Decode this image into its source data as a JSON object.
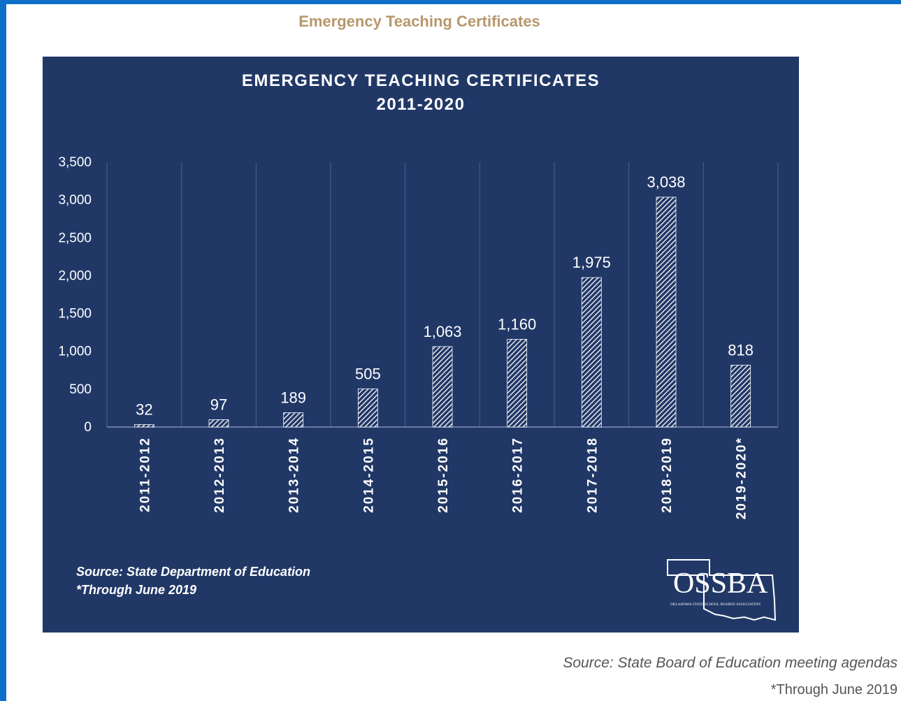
{
  "page": {
    "heading": "Emergency Teaching Certificates",
    "source": "Source: State Board of Education meeting agendas",
    "footnote": "*Through June 2019",
    "frame_color": "#0d6fc8",
    "heading_color": "#b8976b"
  },
  "chart_data": {
    "type": "bar",
    "title": "EMERGENCY TEACHING CERTIFICATES",
    "subtitle": "2011-2020",
    "categories": [
      "2011-2012",
      "2012-2013",
      "2013-2014",
      "2014-2015",
      "2015-2016",
      "2016-2017",
      "2017-2018",
      "2018-2019",
      "2019-2020*"
    ],
    "values": [
      32,
      97,
      189,
      505,
      1063,
      1160,
      1975,
      3038,
      818
    ],
    "value_labels": [
      "32",
      "97",
      "189",
      "505",
      "1,063",
      "1,160",
      "1,975",
      "3,038",
      "818"
    ],
    "yticks": [
      0,
      500,
      1000,
      1500,
      2000,
      2500,
      3000,
      3500
    ],
    "ytick_labels": [
      "0",
      "500",
      "1,000",
      "1,500",
      "2,000",
      "2,500",
      "3,000",
      "3,500"
    ],
    "ylim": [
      0,
      3500
    ],
    "xlabel": "",
    "ylabel": "",
    "grid": "vertical separators",
    "bar_fill": "diagonal hatch, white on navy",
    "background_color": "#213867",
    "notes": [
      "Source: State Department of Education",
      "*Through June 2019"
    ]
  },
  "logo": {
    "text": "OSSBA",
    "subtext": "OKLAHOMA STATE SCHOOL BOARDS ASSOCIATION"
  }
}
